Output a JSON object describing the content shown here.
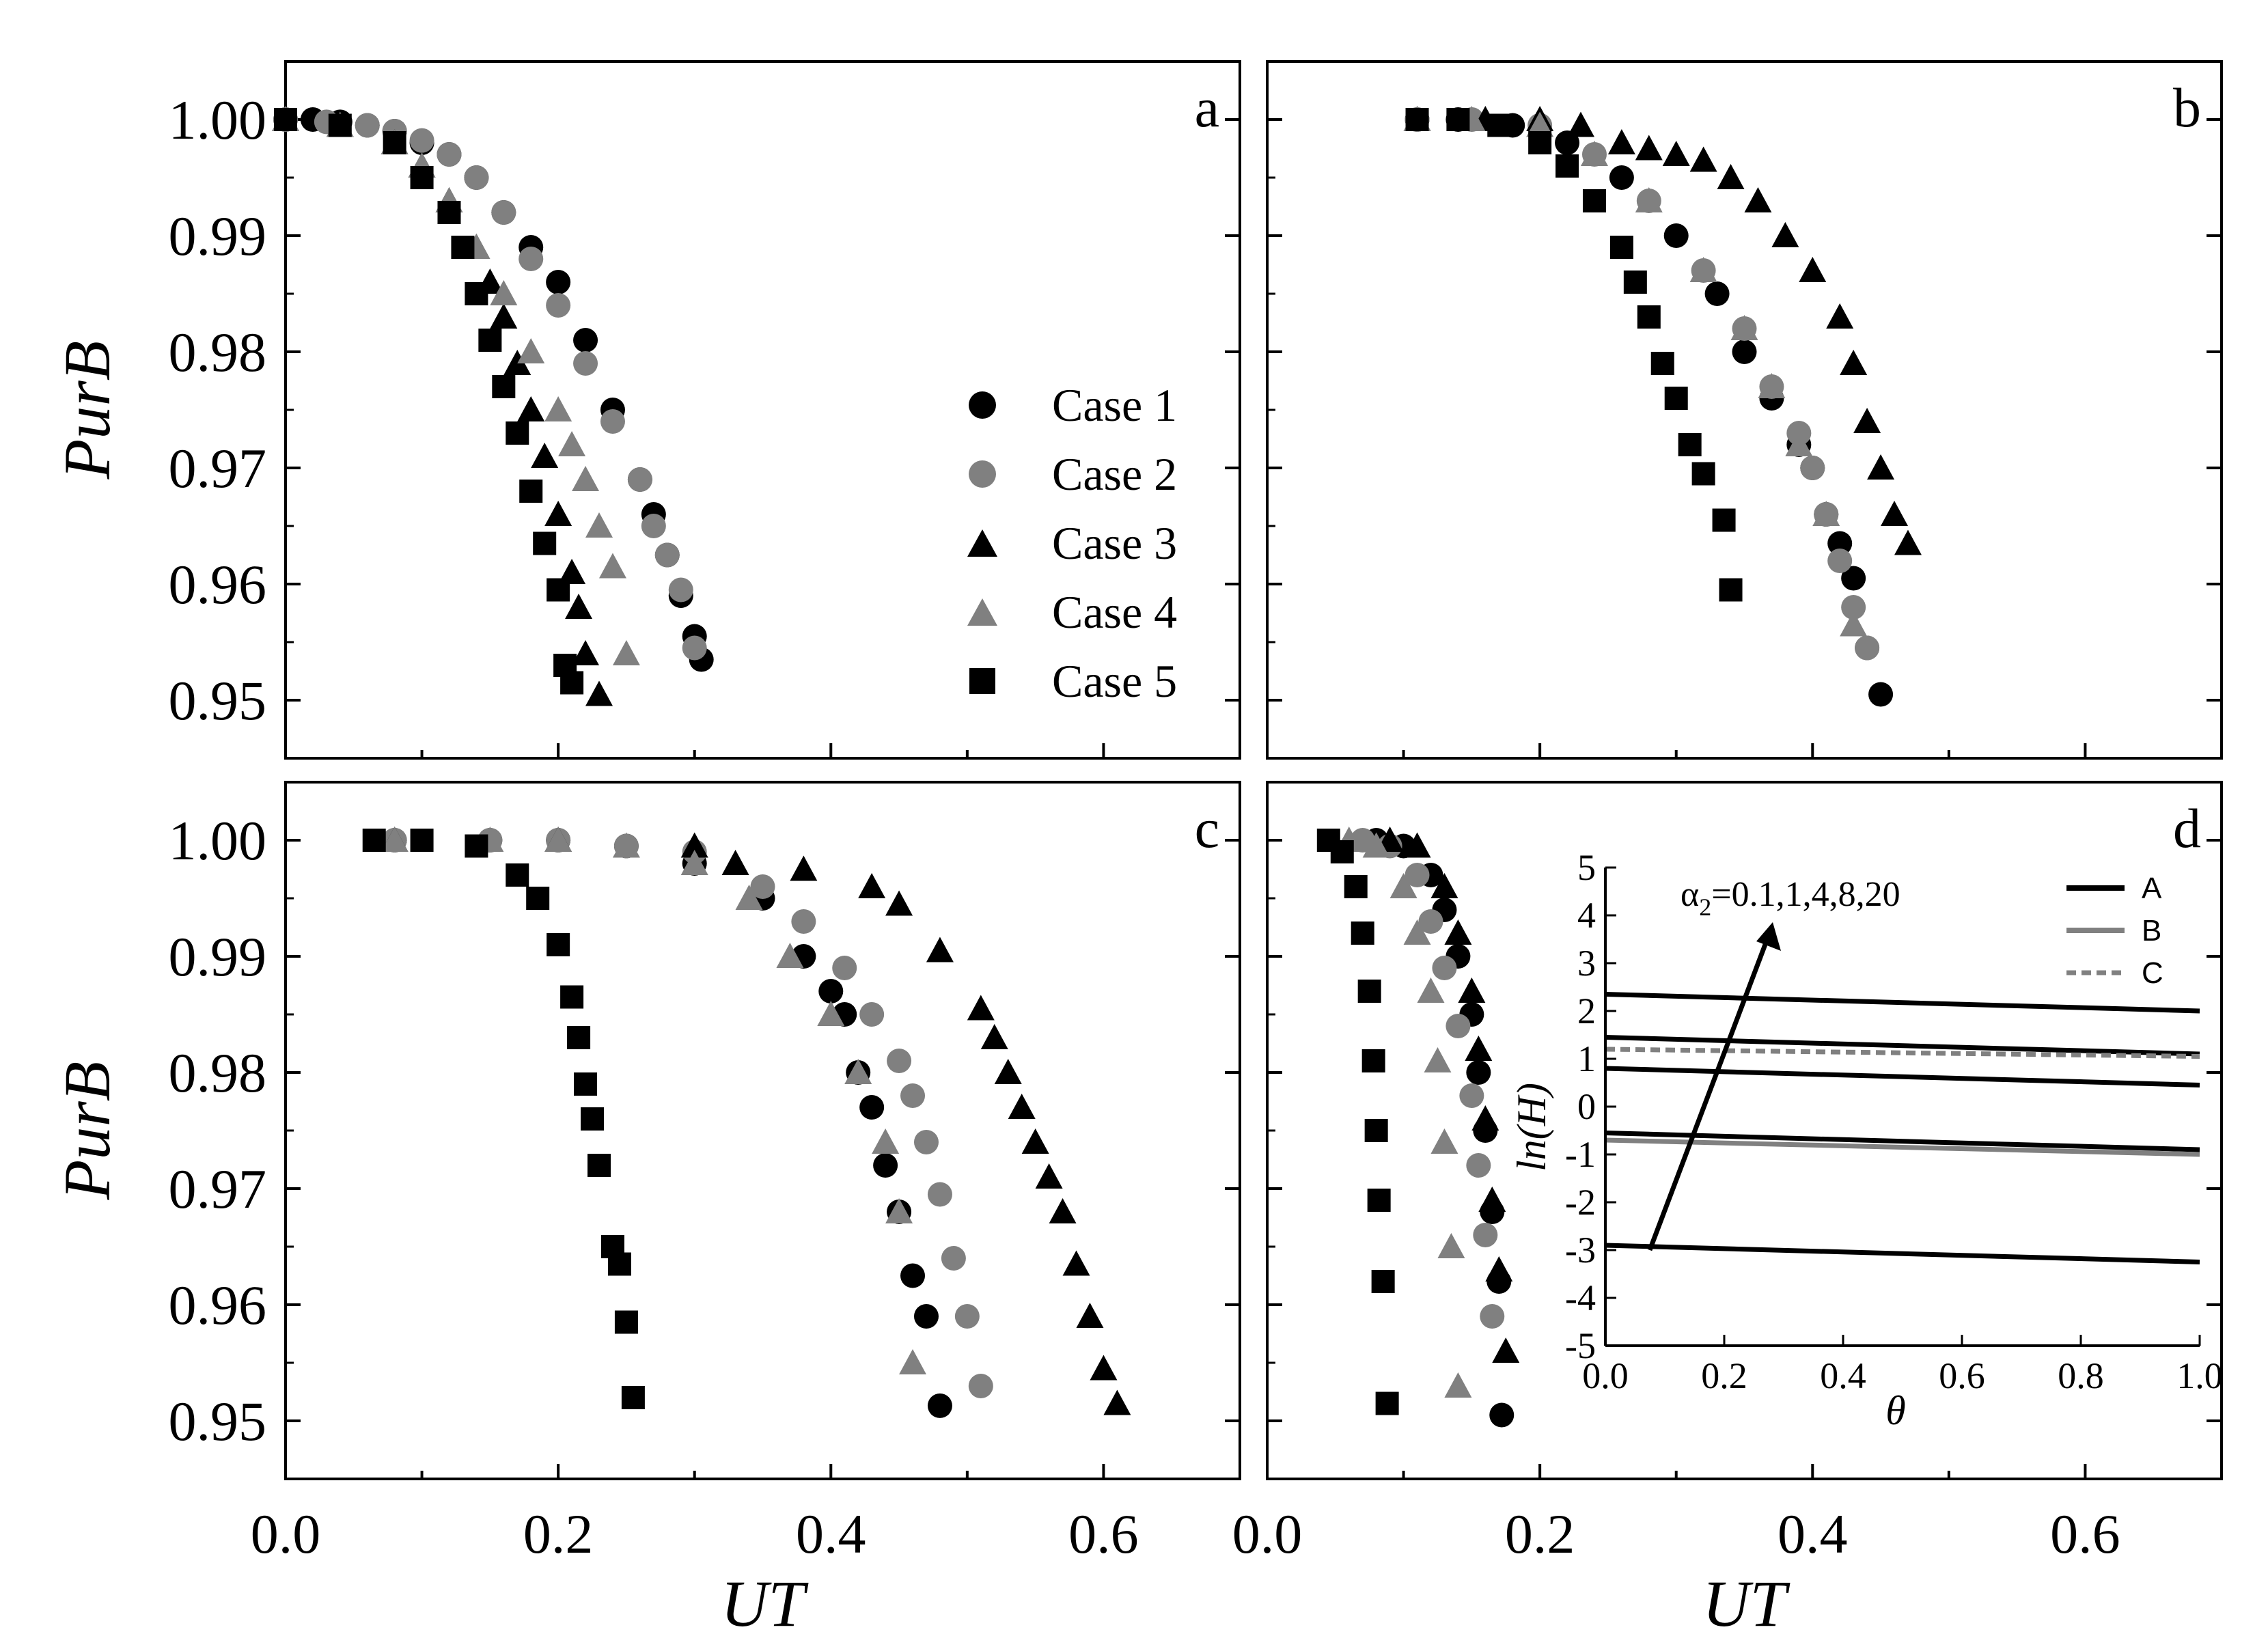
{
  "colors": {
    "black": "#000000",
    "gray": "#808080"
  },
  "legend": [
    {
      "label": "Case 1",
      "marker": "circle",
      "color": "#000000"
    },
    {
      "label": "Case 2",
      "marker": "circle",
      "color": "#808080"
    },
    {
      "label": "Case 3",
      "marker": "triangle",
      "color": "#000000"
    },
    {
      "label": "Case 4",
      "marker": "triangle",
      "color": "#808080"
    },
    {
      "label": "Case 5",
      "marker": "square",
      "color": "#000000"
    }
  ],
  "chart_data": [
    {
      "type": "scatter",
      "panel": "a",
      "xlabel": "",
      "ylabel": "PurB",
      "xlim": [
        0,
        0.7
      ],
      "ylim": [
        0.945,
        1.005
      ],
      "xticks": [
        0.0,
        0.2,
        0.4,
        0.6
      ],
      "yticks": [
        "0.95",
        "0.96",
        "0.97",
        "0.98",
        "0.99",
        "1.00"
      ],
      "series": [
        {
          "name": "Case 1",
          "x": [
            0.0,
            0.02,
            0.04,
            0.06,
            0.08,
            0.1,
            0.12,
            0.14,
            0.16,
            0.18,
            0.2,
            0.22,
            0.24,
            0.26,
            0.27,
            0.28,
            0.29,
            0.3,
            0.305
          ],
          "y": [
            1.0,
            1.0,
            0.9998,
            0.9995,
            0.999,
            0.998,
            0.997,
            0.995,
            0.992,
            0.989,
            0.986,
            0.981,
            0.975,
            0.969,
            0.966,
            0.9625,
            0.959,
            0.9555,
            0.9535
          ]
        },
        {
          "name": "Case 2",
          "x": [
            0.0,
            0.03,
            0.06,
            0.08,
            0.1,
            0.12,
            0.14,
            0.16,
            0.18,
            0.2,
            0.22,
            0.24,
            0.26,
            0.27,
            0.28,
            0.29,
            0.3
          ],
          "y": [
            1.0,
            0.9998,
            0.9995,
            0.999,
            0.9982,
            0.997,
            0.995,
            0.992,
            0.988,
            0.984,
            0.979,
            0.974,
            0.969,
            0.965,
            0.9625,
            0.9595,
            0.9545
          ]
        },
        {
          "name": "Case 3",
          "x": [
            0.0,
            0.04,
            0.08,
            0.1,
            0.12,
            0.14,
            0.15,
            0.16,
            0.17,
            0.18,
            0.19,
            0.2,
            0.21,
            0.215,
            0.22,
            0.23
          ],
          "y": [
            1.0,
            0.9995,
            0.998,
            0.996,
            0.993,
            0.989,
            0.986,
            0.983,
            0.979,
            0.975,
            0.971,
            0.966,
            0.961,
            0.958,
            0.954,
            0.9505
          ]
        },
        {
          "name": "Case 4",
          "x": [
            0.0,
            0.04,
            0.08,
            0.1,
            0.12,
            0.14,
            0.16,
            0.18,
            0.2,
            0.21,
            0.22,
            0.23,
            0.24,
            0.25
          ],
          "y": [
            1.0,
            0.9995,
            0.998,
            0.996,
            0.993,
            0.989,
            0.985,
            0.98,
            0.975,
            0.972,
            0.969,
            0.965,
            0.9615,
            0.954
          ]
        },
        {
          "name": "Case 5",
          "x": [
            0.0,
            0.04,
            0.08,
            0.1,
            0.12,
            0.13,
            0.14,
            0.15,
            0.16,
            0.17,
            0.18,
            0.19,
            0.2,
            0.205,
            0.21
          ],
          "y": [
            1.0,
            0.9995,
            0.998,
            0.995,
            0.992,
            0.989,
            0.985,
            0.981,
            0.977,
            0.973,
            0.968,
            0.9635,
            0.9595,
            0.953,
            0.9515
          ]
        }
      ]
    },
    {
      "type": "scatter",
      "panel": "b",
      "xlabel": "",
      "ylabel": "",
      "xlim": [
        0,
        0.7
      ],
      "ylim": [
        0.945,
        1.005
      ],
      "xticks": [
        0.0,
        0.2,
        0.4,
        0.6
      ],
      "yticks": [
        "0.95",
        "0.96",
        "0.97",
        "0.98",
        "0.99",
        "1.00"
      ],
      "series": [
        {
          "name": "Case 1",
          "x": [
            0.11,
            0.14,
            0.18,
            0.22,
            0.26,
            0.3,
            0.33,
            0.35,
            0.37,
            0.39,
            0.4,
            0.41,
            0.42,
            0.43,
            0.44,
            0.45
          ],
          "y": [
            1.0,
            1.0,
            0.9995,
            0.998,
            0.995,
            0.99,
            0.985,
            0.98,
            0.976,
            0.972,
            0.97,
            0.966,
            0.9635,
            0.9605,
            0.9545,
            0.9505
          ]
        },
        {
          "name": "Case 2",
          "x": [
            0.11,
            0.15,
            0.2,
            0.24,
            0.28,
            0.32,
            0.35,
            0.37,
            0.39,
            0.4,
            0.41,
            0.42,
            0.43,
            0.44
          ],
          "y": [
            1.0,
            1.0,
            0.9995,
            0.997,
            0.993,
            0.987,
            0.982,
            0.977,
            0.973,
            0.97,
            0.966,
            0.962,
            0.958,
            0.9545
          ]
        },
        {
          "name": "Case 3",
          "x": [
            0.11,
            0.16,
            0.2,
            0.23,
            0.26,
            0.28,
            0.3,
            0.32,
            0.34,
            0.36,
            0.38,
            0.4,
            0.42,
            0.43,
            0.44,
            0.45,
            0.46,
            0.47
          ],
          "y": [
            1.0,
            1.0,
            1.0,
            0.9995,
            0.998,
            0.9975,
            0.997,
            0.9965,
            0.995,
            0.993,
            0.99,
            0.987,
            0.983,
            0.979,
            0.974,
            0.97,
            0.966,
            0.9635
          ]
        },
        {
          "name": "Case 4",
          "x": [
            0.11,
            0.15,
            0.2,
            0.24,
            0.28,
            0.32,
            0.35,
            0.37,
            0.39,
            0.41,
            0.43
          ],
          "y": [
            1.0,
            1.0,
            0.9995,
            0.997,
            0.993,
            0.987,
            0.982,
            0.977,
            0.972,
            0.966,
            0.9565
          ]
        },
        {
          "name": "Case 5",
          "x": [
            0.11,
            0.14,
            0.17,
            0.2,
            0.22,
            0.24,
            0.26,
            0.27,
            0.28,
            0.29,
            0.3,
            0.31,
            0.32,
            0.335,
            0.34
          ],
          "y": [
            1.0,
            1.0,
            0.9995,
            0.998,
            0.996,
            0.993,
            0.989,
            0.986,
            0.983,
            0.979,
            0.976,
            0.972,
            0.9695,
            0.9655,
            0.9595
          ]
        }
      ]
    },
    {
      "type": "scatter",
      "panel": "c",
      "xlabel": "UT",
      "ylabel": "PurB",
      "xlim": [
        0,
        0.7
      ],
      "ylim": [
        0.945,
        1.005
      ],
      "xticks": [
        0.0,
        0.2,
        0.4,
        0.6
      ],
      "yticks": [
        "0.95",
        "0.96",
        "0.97",
        "0.98",
        "0.99",
        "1.00"
      ],
      "series": [
        {
          "name": "Case 1",
          "x": [
            0.08,
            0.15,
            0.2,
            0.25,
            0.3,
            0.35,
            0.38,
            0.4,
            0.41,
            0.42,
            0.43,
            0.44,
            0.45,
            0.46,
            0.47,
            0.48
          ],
          "y": [
            1.0,
            1.0,
            1.0,
            0.9995,
            0.998,
            0.995,
            0.99,
            0.987,
            0.985,
            0.98,
            0.977,
            0.972,
            0.968,
            0.9625,
            0.959,
            0.9513
          ]
        },
        {
          "name": "Case 2",
          "x": [
            0.08,
            0.15,
            0.2,
            0.25,
            0.3,
            0.35,
            0.38,
            0.41,
            0.43,
            0.45,
            0.46,
            0.47,
            0.48,
            0.49,
            0.5,
            0.51
          ],
          "y": [
            1.0,
            1.0,
            1.0,
            0.9995,
            0.999,
            0.996,
            0.993,
            0.989,
            0.985,
            0.981,
            0.978,
            0.974,
            0.9695,
            0.964,
            0.959,
            0.953
          ]
        },
        {
          "name": "Case 3",
          "x": [
            0.08,
            0.2,
            0.3,
            0.33,
            0.38,
            0.43,
            0.45,
            0.48,
            0.51,
            0.52,
            0.53,
            0.54,
            0.55,
            0.56,
            0.57,
            0.58,
            0.59,
            0.6,
            0.61
          ],
          "y": [
            1.0,
            1.0,
            0.9995,
            0.998,
            0.9975,
            0.996,
            0.9945,
            0.9905,
            0.9855,
            0.983,
            0.98,
            0.977,
            0.974,
            0.971,
            0.968,
            0.9635,
            0.959,
            0.9545,
            0.9515
          ]
        },
        {
          "name": "Case 4",
          "x": [
            0.08,
            0.15,
            0.2,
            0.25,
            0.3,
            0.34,
            0.37,
            0.4,
            0.42,
            0.44,
            0.45,
            0.46
          ],
          "y": [
            1.0,
            1.0,
            1.0,
            0.9995,
            0.998,
            0.995,
            0.99,
            0.985,
            0.98,
            0.974,
            0.968,
            0.955
          ]
        },
        {
          "name": "Case 5",
          "x": [
            0.065,
            0.1,
            0.14,
            0.17,
            0.185,
            0.2,
            0.21,
            0.215,
            0.22,
            0.225,
            0.23,
            0.24,
            0.245,
            0.25,
            0.255
          ],
          "y": [
            1.0,
            1.0,
            0.9995,
            0.997,
            0.995,
            0.991,
            0.9865,
            0.983,
            0.979,
            0.976,
            0.972,
            0.965,
            0.9635,
            0.9585,
            0.952
          ]
        }
      ]
    },
    {
      "type": "scatter",
      "panel": "d",
      "xlabel": "UT",
      "ylabel": "",
      "xlim": [
        0,
        0.7
      ],
      "ylim": [
        0.945,
        1.005
      ],
      "xticks": [
        0.0,
        0.2,
        0.4,
        0.6
      ],
      "yticks": [
        "0.95",
        "0.96",
        "0.97",
        "0.98",
        "0.99",
        "1.00"
      ],
      "series": [
        {
          "name": "Case 1",
          "x": [
            0.08,
            0.1,
            0.12,
            0.13,
            0.14,
            0.15,
            0.155,
            0.16,
            0.165,
            0.17,
            0.172
          ],
          "y": [
            1.0,
            0.9995,
            0.997,
            0.994,
            0.99,
            0.985,
            0.98,
            0.975,
            0.968,
            0.962,
            0.9505
          ]
        },
        {
          "name": "Case 2",
          "x": [
            0.07,
            0.09,
            0.11,
            0.12,
            0.13,
            0.14,
            0.15,
            0.155,
            0.16,
            0.165
          ],
          "y": [
            1.0,
            0.9995,
            0.997,
            0.993,
            0.989,
            0.984,
            0.978,
            0.972,
            0.966,
            0.959
          ]
        },
        {
          "name": "Case 3",
          "x": [
            0.09,
            0.11,
            0.13,
            0.14,
            0.15,
            0.155,
            0.16,
            0.165,
            0.17,
            0.175
          ],
          "y": [
            1.0,
            0.9995,
            0.996,
            0.992,
            0.987,
            0.982,
            0.976,
            0.969,
            0.963,
            0.956
          ]
        },
        {
          "name": "Case 4",
          "x": [
            0.06,
            0.08,
            0.1,
            0.11,
            0.12,
            0.125,
            0.13,
            0.135,
            0.14
          ],
          "y": [
            1.0,
            0.9995,
            0.996,
            0.992,
            0.987,
            0.981,
            0.974,
            0.965,
            0.953
          ]
        },
        {
          "name": "Case 5",
          "x": [
            0.045,
            0.055,
            0.065,
            0.07,
            0.075,
            0.078,
            0.08,
            0.082,
            0.085,
            0.088
          ],
          "y": [
            1.0,
            0.999,
            0.996,
            0.992,
            0.987,
            0.981,
            0.975,
            0.969,
            0.962,
            0.9515
          ]
        }
      ],
      "inset": {
        "type": "line",
        "xlabel": "θ",
        "ylabel": "ln(H)",
        "xlim": [
          0,
          1.0
        ],
        "ylim": [
          -5,
          5
        ],
        "xticks": [
          "0.0",
          "0.2",
          "0.4",
          "0.6",
          "0.8",
          "1.0"
        ],
        "yticks": [
          "-5",
          "-4",
          "-3",
          "-2",
          "-1",
          "0",
          "1",
          "2",
          "3",
          "4",
          "5"
        ],
        "annotation": {
          "alpha": "α",
          "subscript": "2",
          "text": "=0.1,1,4,8,20"
        },
        "legend": [
          {
            "label": "A",
            "color": "#000000",
            "dashed": false
          },
          {
            "label": "B",
            "color": "#808080",
            "dashed": false
          },
          {
            "label": "C",
            "color": "#808080",
            "dashed": true
          }
        ],
        "series": [
          {
            "name": "A",
            "x": [
              0,
              1
            ],
            "y": [
              2.35,
              2.0
            ]
          },
          {
            "name": "A",
            "x": [
              0,
              1
            ],
            "y": [
              1.45,
              1.1
            ]
          },
          {
            "name": "A",
            "x": [
              0,
              1
            ],
            "y": [
              0.8,
              0.45
            ]
          },
          {
            "name": "A",
            "x": [
              0,
              1
            ],
            "y": [
              -0.55,
              -0.9
            ]
          },
          {
            "name": "A",
            "x": [
              0,
              1
            ],
            "y": [
              -2.9,
              -3.25
            ]
          },
          {
            "name": "B",
            "x": [
              0,
              1
            ],
            "y": [
              -0.7,
              -1.0
            ]
          },
          {
            "name": "C",
            "x": [
              0,
              1
            ],
            "y": [
              1.2,
              1.05
            ]
          }
        ]
      }
    }
  ]
}
